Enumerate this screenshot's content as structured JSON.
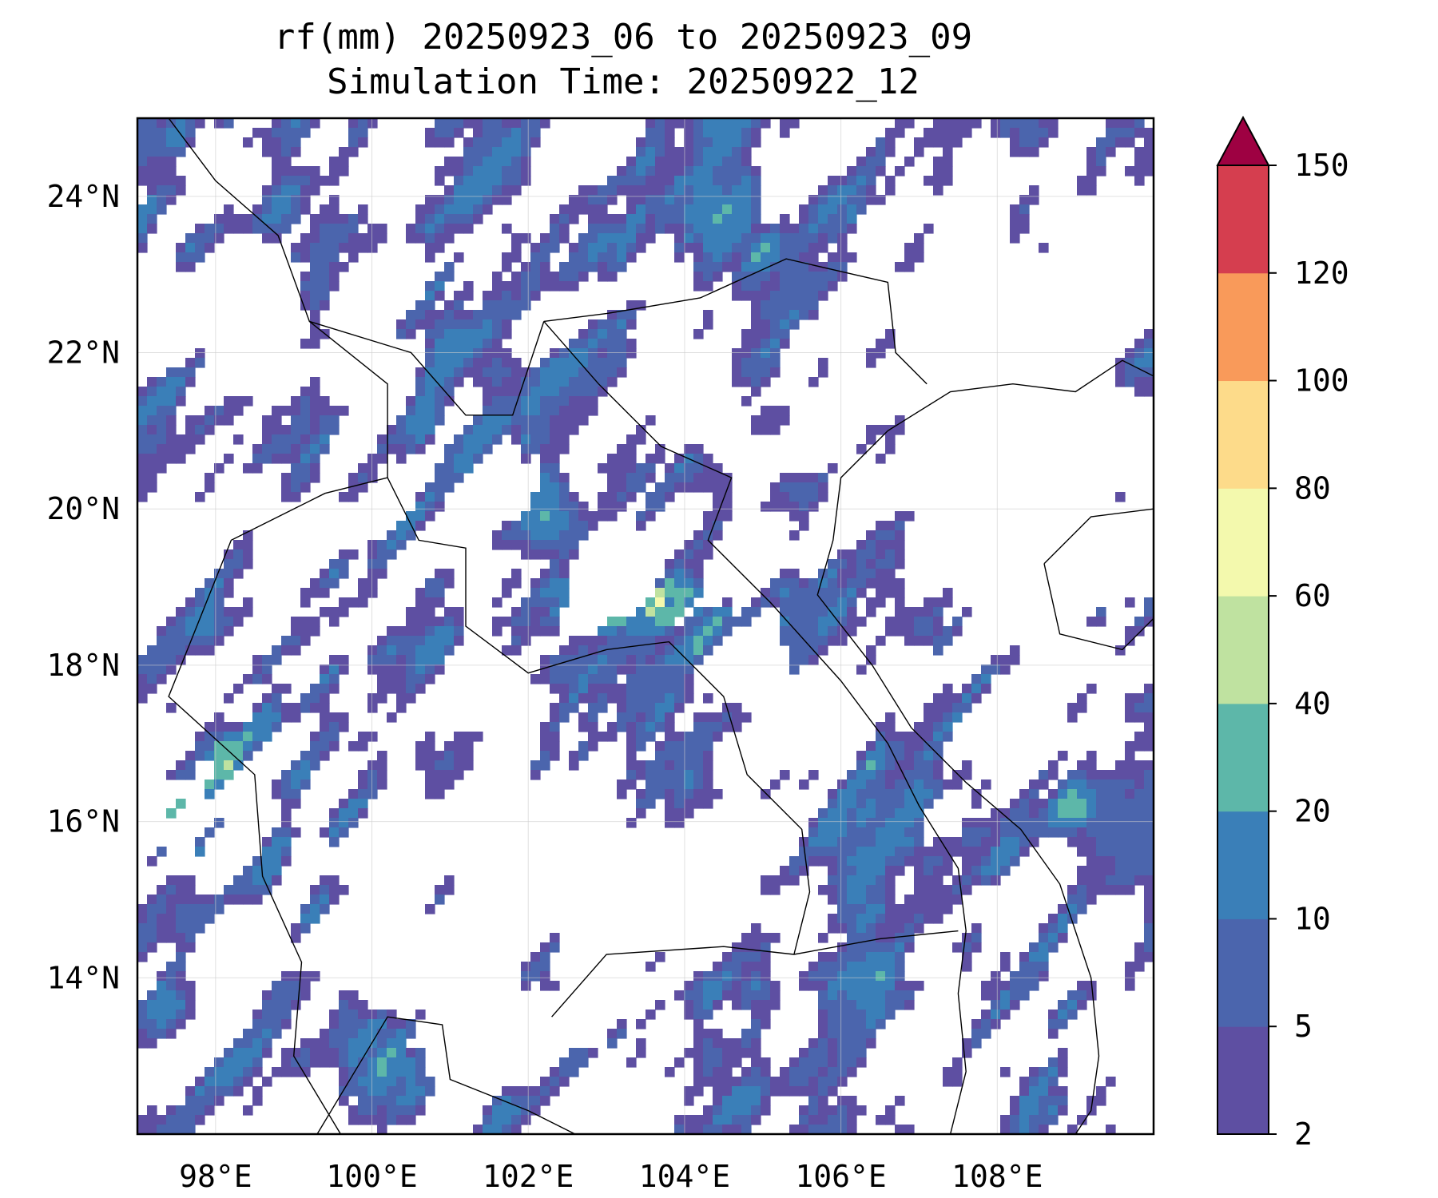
{
  "title": {
    "line1": "rf(mm) 20250923_06 to 20250923_09",
    "line2": "Simulation Time: 20250922_12"
  },
  "map": {
    "lon_range": [
      97,
      110
    ],
    "lat_range": [
      12,
      25
    ],
    "lon_ticks": [
      {
        "value": 98,
        "label": "98°E"
      },
      {
        "value": 100,
        "label": "100°E"
      },
      {
        "value": 102,
        "label": "102°E"
      },
      {
        "value": 104,
        "label": "104°E"
      },
      {
        "value": 106,
        "label": "106°E"
      },
      {
        "value": 108,
        "label": "108°E"
      }
    ],
    "lat_ticks": [
      {
        "value": 14,
        "label": "14°N"
      },
      {
        "value": 16,
        "label": "16°N"
      },
      {
        "value": 18,
        "label": "18°N"
      },
      {
        "value": 20,
        "label": "20°N"
      },
      {
        "value": 22,
        "label": "22°N"
      },
      {
        "value": 24,
        "label": "24°N"
      }
    ],
    "gridlines": true
  },
  "colorbar": {
    "extend": "max",
    "levels": [
      {
        "label": "2",
        "color": "#5e4fa2"
      },
      {
        "label": "5",
        "color": "#4b65ad"
      },
      {
        "label": "10",
        "color": "#3a7fb8"
      },
      {
        "label": "20",
        "color": "#5db7a9"
      },
      {
        "label": "40",
        "color": "#bfe2a0"
      },
      {
        "label": "60",
        "color": "#f3f9ad"
      },
      {
        "label": "80",
        "color": "#fddb8a"
      },
      {
        "label": "100",
        "color": "#f99a5a"
      },
      {
        "label": "120",
        "color": "#d53e4f"
      },
      {
        "label": "150",
        "color": "#9e0142"
      }
    ]
  }
}
